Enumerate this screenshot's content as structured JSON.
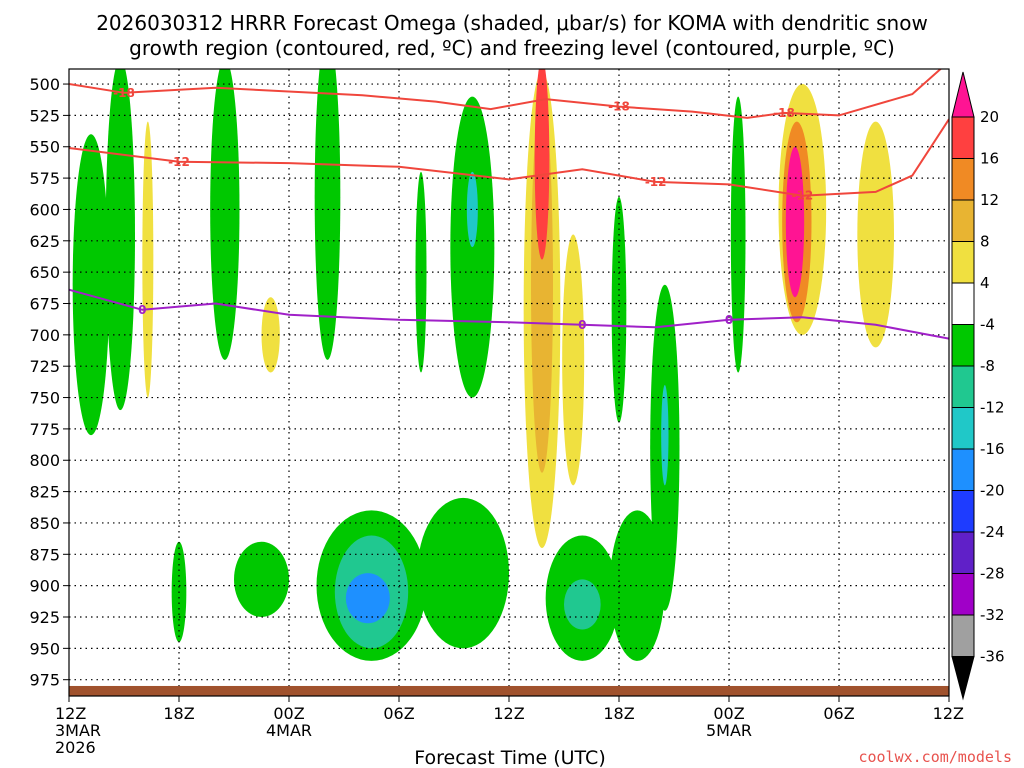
{
  "chart_data": {
    "type": "heatmap",
    "title_line1": "2026030312 HRRR Forecast Omega (shaded, μbar/s) for KOMA with dendritic snow",
    "title_line2": "growth region (contoured, red, ºC) and freezing level (contoured, purple, ºC)",
    "xlabel": "Forecast Time (UTC)",
    "credit": "coolwx.com/models",
    "x_range_hours": [
      0,
      48
    ],
    "y_range_mb": [
      488,
      988
    ],
    "y_ticks": [
      500,
      525,
      550,
      575,
      600,
      625,
      650,
      675,
      700,
      725,
      750,
      775,
      800,
      825,
      850,
      875,
      900,
      925,
      950,
      975
    ],
    "x_ticks": [
      {
        "hour": 0,
        "label": "12Z",
        "date": "3MAR",
        "year": "2026"
      },
      {
        "hour": 6,
        "label": "18Z"
      },
      {
        "hour": 12,
        "label": "00Z",
        "date": "4MAR"
      },
      {
        "hour": 18,
        "label": "06Z"
      },
      {
        "hour": 24,
        "label": "12Z"
      },
      {
        "hour": 30,
        "label": "18Z"
      },
      {
        "hour": 36,
        "label": "00Z",
        "date": "5MAR"
      },
      {
        "hour": 42,
        "label": "06Z"
      },
      {
        "hour": 48,
        "label": "12Z"
      }
    ],
    "colorbar": {
      "levels": [
        20,
        16,
        12,
        8,
        4,
        -4,
        -8,
        -12,
        -16,
        -20,
        -24,
        -28,
        -32,
        -36
      ],
      "colors": [
        "#ff1493",
        "#ff4040",
        "#f08a24",
        "#e8b432",
        "#f0e040",
        "#ffffff",
        "#00c800",
        "#20c890",
        "#20c8c8",
        "#1e90ff",
        "#1e3cff",
        "#6020c8",
        "#a000c8",
        "#a0a0a0",
        "#000000"
      ]
    },
    "omega_regions": [
      {
        "cx": 1.2,
        "cy": 660,
        "rx": 1.0,
        "ry": 120,
        "color": "#00c800"
      },
      {
        "cx": 2.8,
        "cy": 620,
        "rx": 0.8,
        "ry": 140,
        "color": "#00c800"
      },
      {
        "cx": 4.3,
        "cy": 640,
        "rx": 0.3,
        "ry": 110,
        "color": "#f0e040"
      },
      {
        "cx": 8.5,
        "cy": 600,
        "rx": 0.8,
        "ry": 120,
        "color": "#00c800"
      },
      {
        "cx": 14.1,
        "cy": 590,
        "rx": 0.7,
        "ry": 130,
        "color": "#00c800"
      },
      {
        "cx": 11.0,
        "cy": 700,
        "rx": 0.5,
        "ry": 30,
        "color": "#f0e040"
      },
      {
        "cx": 19.2,
        "cy": 650,
        "rx": 0.3,
        "ry": 80,
        "color": "#00c800"
      },
      {
        "cx": 22.0,
        "cy": 630,
        "rx": 1.2,
        "ry": 120,
        "color": "#00c800"
      },
      {
        "cx": 22.0,
        "cy": 600,
        "rx": 0.3,
        "ry": 30,
        "color": "#20c8c8"
      },
      {
        "cx": 25.8,
        "cy": 680,
        "rx": 1.0,
        "ry": 190,
        "color": "#f0e040"
      },
      {
        "cx": 25.8,
        "cy": 660,
        "rx": 0.6,
        "ry": 150,
        "color": "#e8b432"
      },
      {
        "cx": 25.8,
        "cy": 560,
        "rx": 0.4,
        "ry": 80,
        "color": "#ff4040"
      },
      {
        "cx": 27.5,
        "cy": 720,
        "rx": 0.6,
        "ry": 100,
        "color": "#f0e040"
      },
      {
        "cx": 30.0,
        "cy": 680,
        "rx": 0.4,
        "ry": 90,
        "color": "#00c800"
      },
      {
        "cx": 32.5,
        "cy": 790,
        "rx": 0.8,
        "ry": 130,
        "color": "#00c800"
      },
      {
        "cx": 32.5,
        "cy": 780,
        "rx": 0.2,
        "ry": 40,
        "color": "#20c8c8"
      },
      {
        "cx": 36.5,
        "cy": 620,
        "rx": 0.4,
        "ry": 110,
        "color": "#00c800"
      },
      {
        "cx": 40.0,
        "cy": 600,
        "rx": 1.3,
        "ry": 100,
        "color": "#f0e040"
      },
      {
        "cx": 39.7,
        "cy": 610,
        "rx": 0.8,
        "ry": 80,
        "color": "#f08a24"
      },
      {
        "cx": 39.6,
        "cy": 610,
        "rx": 0.5,
        "ry": 60,
        "color": "#ff1493"
      },
      {
        "cx": 44.0,
        "cy": 620,
        "rx": 1.0,
        "ry": 90,
        "color": "#f0e040"
      },
      {
        "cx": 16.5,
        "cy": 900,
        "rx": 3.0,
        "ry": 60,
        "color": "#00c800"
      },
      {
        "cx": 16.5,
        "cy": 905,
        "rx": 2.0,
        "ry": 45,
        "color": "#20c890"
      },
      {
        "cx": 16.3,
        "cy": 910,
        "rx": 1.2,
        "ry": 20,
        "color": "#1e90ff"
      },
      {
        "cx": 21.5,
        "cy": 890,
        "rx": 2.5,
        "ry": 60,
        "color": "#00c800"
      },
      {
        "cx": 28.0,
        "cy": 910,
        "rx": 2.0,
        "ry": 50,
        "color": "#00c800"
      },
      {
        "cx": 28.0,
        "cy": 915,
        "rx": 1.0,
        "ry": 20,
        "color": "#20c890"
      },
      {
        "cx": 31.0,
        "cy": 900,
        "rx": 1.5,
        "ry": 60,
        "color": "#00c800"
      },
      {
        "cx": 10.5,
        "cy": 895,
        "rx": 1.5,
        "ry": 30,
        "color": "#00c800"
      },
      {
        "cx": 6.0,
        "cy": 905,
        "rx": 0.4,
        "ry": 40,
        "color": "#00c800"
      }
    ],
    "dendritic_18": [
      [
        0,
        500
      ],
      [
        3,
        507
      ],
      [
        8,
        503
      ],
      [
        16,
        509
      ],
      [
        20,
        514
      ],
      [
        23,
        520
      ],
      [
        26,
        512
      ],
      [
        30,
        518
      ],
      [
        34,
        522
      ],
      [
        37,
        527
      ],
      [
        39,
        523
      ],
      [
        42,
        525
      ],
      [
        46,
        508
      ],
      [
        48,
        482
      ]
    ],
    "dendritic_18_label": "-18",
    "dendritic_12": [
      [
        0,
        551
      ],
      [
        6,
        562
      ],
      [
        12,
        563
      ],
      [
        18,
        566
      ],
      [
        24,
        576
      ],
      [
        28,
        568
      ],
      [
        32,
        578
      ],
      [
        36,
        580
      ],
      [
        40,
        589
      ],
      [
        44,
        586
      ],
      [
        46,
        573
      ],
      [
        48,
        528
      ]
    ],
    "dendritic_12_label": "-12",
    "freezing_0": [
      [
        0,
        664
      ],
      [
        4,
        680
      ],
      [
        8,
        675
      ],
      [
        12,
        684
      ],
      [
        18,
        688
      ],
      [
        24,
        690
      ],
      [
        28,
        692
      ],
      [
        32,
        694
      ],
      [
        36,
        688
      ],
      [
        40,
        686
      ],
      [
        44,
        692
      ],
      [
        48,
        703
      ]
    ],
    "freezing_0_label": "0",
    "terrain_top_mb": 980,
    "colors": {
      "dendritic": "#f0463c",
      "freezing": "#a020c8",
      "terrain": "#a0522d",
      "grid": "#000000"
    }
  }
}
